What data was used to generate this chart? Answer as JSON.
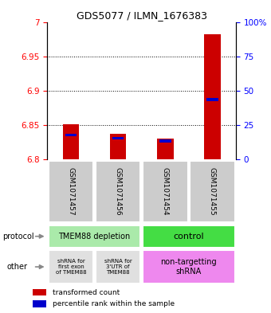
{
  "title": "GDS5077 / ILMN_1676383",
  "samples": [
    "GSM1071457",
    "GSM1071456",
    "GSM1071454",
    "GSM1071455"
  ],
  "red_values": [
    6.851,
    6.838,
    6.831,
    6.982
  ],
  "blue_values": [
    6.836,
    6.831,
    6.827,
    6.887
  ],
  "ylim_left": [
    6.8,
    7.0
  ],
  "yticks_left": [
    6.8,
    6.85,
    6.9,
    6.95,
    7.0
  ],
  "ytick_labels_left": [
    "6.8",
    "6.85",
    "6.9",
    "6.95",
    "7"
  ],
  "yticks_right_vals": [
    0,
    25,
    50,
    75,
    100
  ],
  "ytick_labels_right": [
    "0",
    "25",
    "50",
    "75",
    "100%"
  ],
  "bar_base": 6.8,
  "protocol_labels": [
    "TMEM88 depletion",
    "control"
  ],
  "protocol_color_left": "#aaeaaa",
  "protocol_color_right": "#44dd44",
  "other_labels_left1": "shRNA for\nfirst exon\nof TMEM88",
  "other_labels_left2": "shRNA for\n3'UTR of\nTMEM88",
  "other_labels_right": "non-targetting\nshRNA",
  "other_color_left": "#e0e0e0",
  "other_color_right": "#ee88ee",
  "legend_red": "transformed count",
  "legend_blue": "percentile rank within the sample",
  "sample_box_color": "#cccccc",
  "red_color": "#cc0000",
  "blue_color": "#0000cc",
  "bar_width": 0.35,
  "blue_bar_width": 0.25,
  "blue_bar_height": 0.004
}
